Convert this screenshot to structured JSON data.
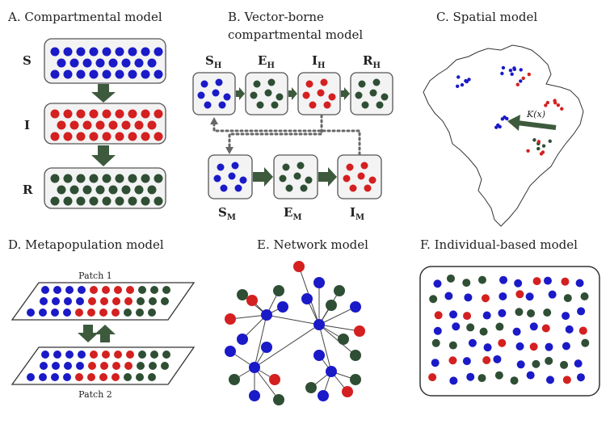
{
  "panels": {
    "a": {
      "title": "A. Compartmental model",
      "labels": [
        "S",
        "I",
        "R"
      ]
    },
    "b": {
      "title_line1": "B. Vector-borne",
      "title_line2": "compartmental model",
      "host": [
        {
          "main": "S",
          "sub": "H"
        },
        {
          "main": "E",
          "sub": "H"
        },
        {
          "main": "I",
          "sub": "H"
        },
        {
          "main": "R",
          "sub": "H"
        }
      ],
      "vector": [
        {
          "main": "S",
          "sub": "M"
        },
        {
          "main": "E",
          "sub": "M"
        },
        {
          "main": "I",
          "sub": "M"
        }
      ]
    },
    "c": {
      "title": "C. Spatial model",
      "kernel": "K(x)"
    },
    "d": {
      "title": "D. Metapopulation model",
      "patch1": "Patch 1",
      "patch2": "Patch 2"
    },
    "e": {
      "title": "E. Network model"
    },
    "f": {
      "title": "F. Individual-based model"
    }
  },
  "colors": {
    "susceptible": "#1a1ac8",
    "infected": "#d42020",
    "recovered": "#2f4f35",
    "arrow": "#3d5a3d",
    "box_fill": "#f3f3f3"
  }
}
